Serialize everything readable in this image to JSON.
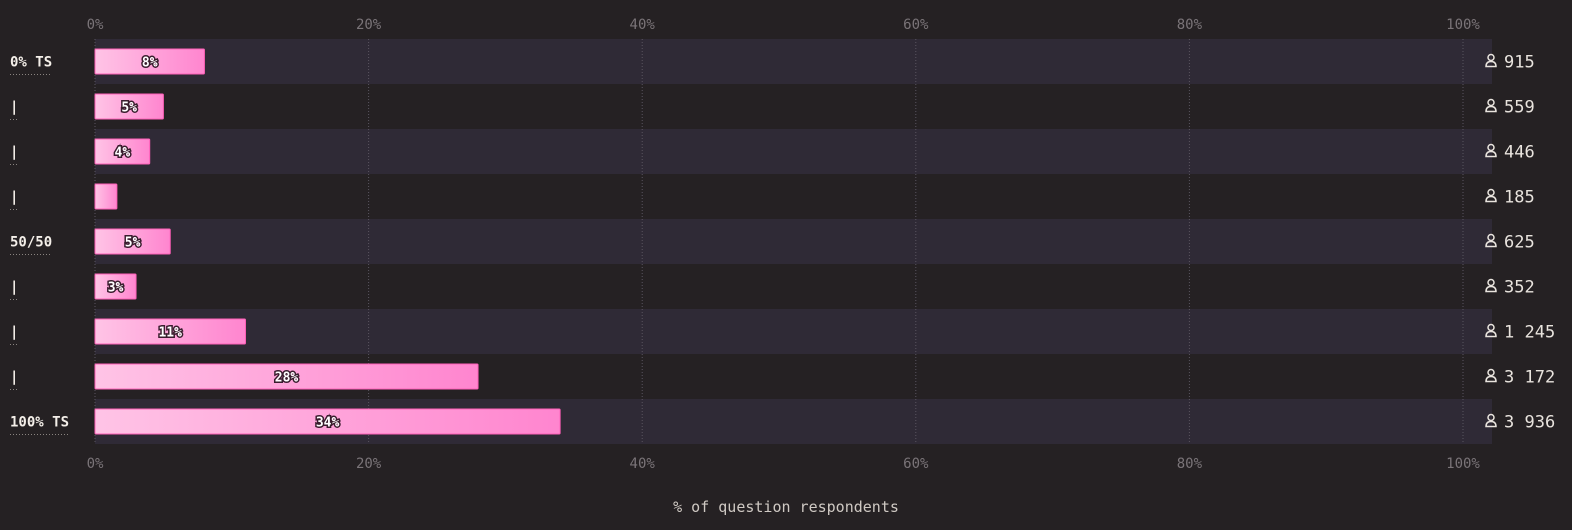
{
  "chart_data": {
    "type": "bar",
    "orientation": "horizontal",
    "xlabel": "% of question respondents",
    "xlim": [
      0,
      100
    ],
    "x_ticks": [
      "0%",
      "20%",
      "40%",
      "60%",
      "80%",
      "100%"
    ],
    "categories": [
      "0% TS",
      "|",
      "|",
      "|",
      "50/50",
      "|",
      "|",
      "|",
      "100% TS"
    ],
    "values": [
      8,
      5,
      4,
      1.6,
      5.5,
      3,
      11,
      28,
      34
    ],
    "data_labels": [
      "8%",
      "5%",
      "4%",
      "",
      "5%",
      "3%",
      "11%",
      "28%",
      "34%"
    ],
    "counts": [
      "915",
      "559",
      "446",
      "185",
      "625",
      "352",
      "1 245",
      "3 172",
      "3 936"
    ],
    "grid": true,
    "colors": {
      "bar_start": "#ffc4e6",
      "bar_end": "#ff85cf",
      "row_band": "#2f2a36",
      "background": "#252123"
    },
    "count_icon": "person-icon"
  }
}
